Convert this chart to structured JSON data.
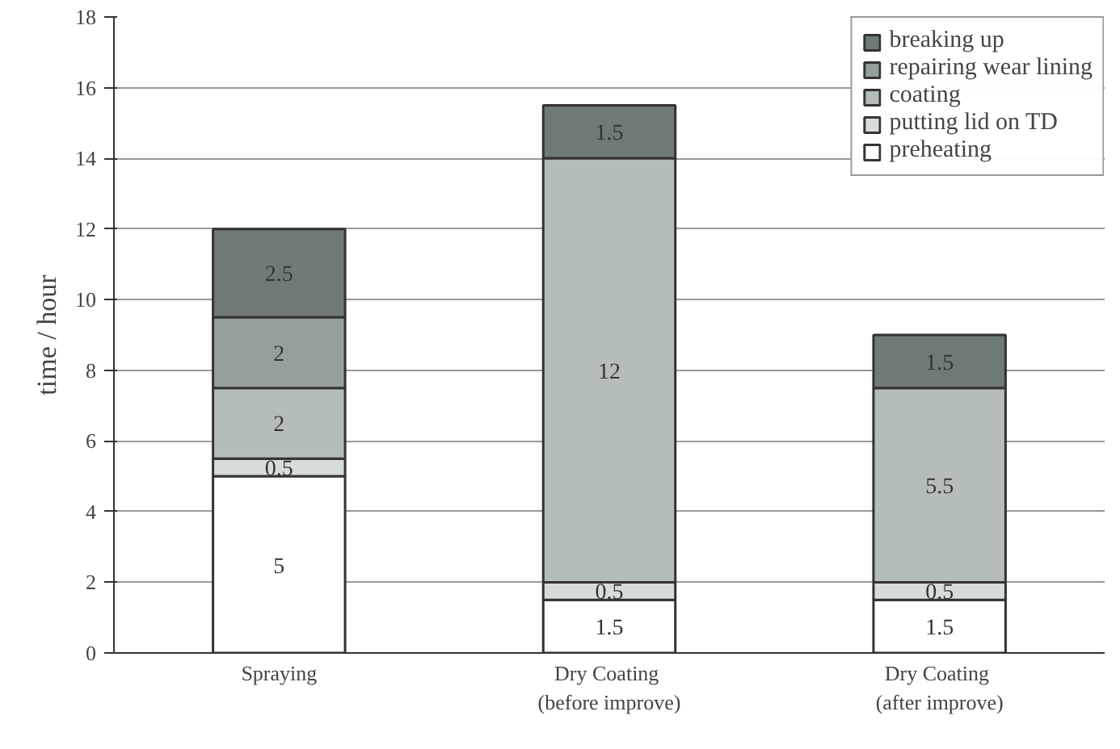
{
  "chart_data": {
    "type": "bar",
    "stacked": true,
    "ylabel": "time / hour",
    "categories": [
      "Spraying",
      "Dry  Coating\n(before improve)",
      "Dry  Coating\n(after improve)"
    ],
    "series": [
      {
        "name": "preheating",
        "color": "#ffffff",
        "values": [
          5,
          1.5,
          1.5
        ],
        "value_labels": [
          "5",
          "1.5",
          "1.5"
        ]
      },
      {
        "name": "putting lid on TD",
        "color": "#d6dcdc",
        "values": [
          0.5,
          0.5,
          0.5
        ],
        "value_labels": [
          "0.5",
          "0.5",
          "0.5"
        ]
      },
      {
        "name": "coating",
        "color": "#b5bcbc",
        "values": [
          2,
          12,
          5.5
        ],
        "value_labels": [
          "2",
          "12",
          "5.5"
        ]
      },
      {
        "name": "repairing wear lining",
        "color": "#95a09e",
        "values": [
          2,
          null,
          null
        ],
        "value_labels": [
          "2",
          null,
          null
        ]
      },
      {
        "name": "breaking up",
        "color": "#6f7a77",
        "values": [
          2.5,
          1.5,
          1.5
        ],
        "value_labels": [
          "2.5",
          "1.5",
          "1.5"
        ]
      }
    ],
    "ylim": [
      0,
      18
    ],
    "yticks": [
      0,
      2,
      4,
      6,
      8,
      10,
      12,
      14,
      16,
      18
    ],
    "grid": "y",
    "legend": "top right"
  }
}
